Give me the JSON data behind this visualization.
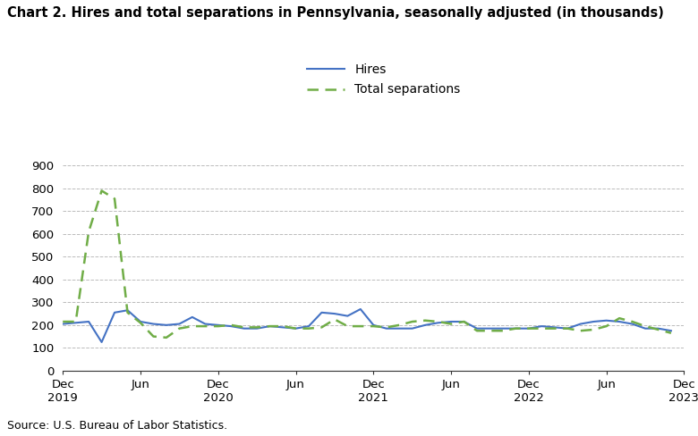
{
  "title": "Chart 2. Hires and total separations in Pennsylvania, seasonally adjusted (in thousands)",
  "source": "Source: U.S. Bureau of Labor Statistics.",
  "hires_label": "Hires",
  "sep_label": "Total separations",
  "hires_color": "#4472C4",
  "sep_color": "#70AD47",
  "ylim": [
    0,
    900
  ],
  "yticks": [
    0,
    100,
    200,
    300,
    400,
    500,
    600,
    700,
    800,
    900
  ],
  "xtick_labels_line1": [
    "Dec",
    "Jun",
    "Dec",
    "Jun",
    "Dec",
    "Jun",
    "Dec",
    "Jun",
    "Dec"
  ],
  "xtick_labels_line2": [
    "2019",
    "",
    "2020",
    "",
    "2021",
    "",
    "2022",
    "",
    "2023"
  ],
  "hires": [
    205,
    210,
    215,
    125,
    255,
    265,
    215,
    205,
    200,
    205,
    235,
    205,
    200,
    195,
    185,
    185,
    195,
    190,
    185,
    195,
    255,
    250,
    240,
    270,
    200,
    185,
    185,
    185,
    200,
    210,
    215,
    215,
    185,
    185,
    185,
    185,
    185,
    195,
    190,
    185,
    205,
    215,
    220,
    215,
    205,
    185,
    185,
    175
  ],
  "separations": [
    215,
    215,
    610,
    790,
    755,
    255,
    210,
    150,
    145,
    185,
    195,
    195,
    195,
    200,
    190,
    190,
    195,
    195,
    185,
    185,
    190,
    225,
    195,
    195,
    195,
    190,
    200,
    215,
    220,
    215,
    205,
    215,
    175,
    175,
    175,
    185,
    185,
    185,
    185,
    185,
    175,
    180,
    195,
    230,
    215,
    195,
    180,
    165
  ],
  "n_points": 48
}
